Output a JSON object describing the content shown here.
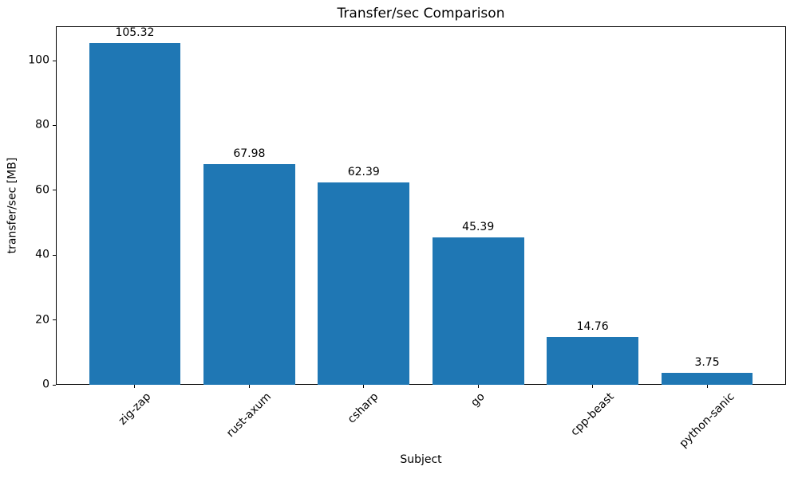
{
  "chart_data": {
    "type": "bar",
    "title": "Transfer/sec Comparison",
    "xlabel": "Subject",
    "ylabel": "transfer/sec [MB]",
    "categories": [
      "zig-zap",
      "rust-axum",
      "csharp",
      "go",
      "cpp-beast",
      "python-sanic"
    ],
    "values": [
      105.32,
      67.98,
      62.39,
      45.39,
      14.76,
      3.75
    ],
    "value_labels": [
      "105.32",
      "67.98",
      "62.39",
      "45.39",
      "14.76",
      "3.75"
    ],
    "ylim": [
      0,
      110.59
    ],
    "yticks": [
      0,
      20,
      40,
      60,
      80,
      100
    ],
    "xlim": [
      -0.69,
      5.69
    ],
    "bar_width": 0.8,
    "bar_color": "#1f77b4",
    "axis_color": "#000000",
    "x_tick_rotation": 45,
    "grid": false,
    "legend": "none"
  }
}
